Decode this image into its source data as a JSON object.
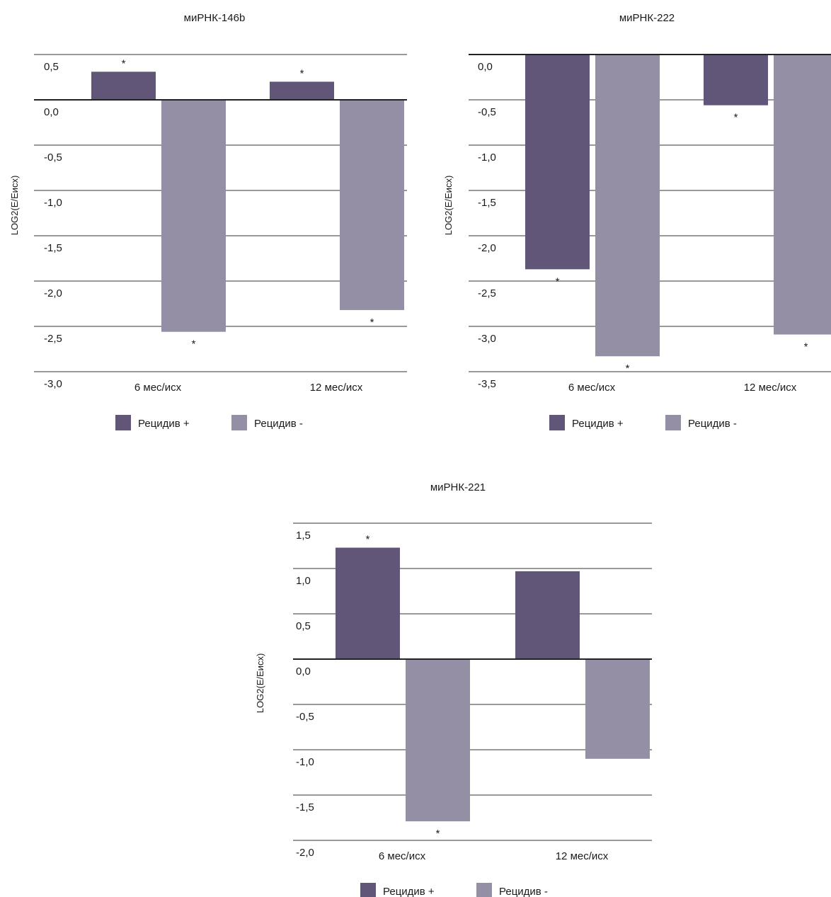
{
  "colors": {
    "relapse_plus": "#615677",
    "relapse_minus": "#958fa5",
    "grid": "#333333"
  },
  "chart_data": [
    {
      "type": "bar",
      "title": "миРНК-146b",
      "ylabel": "LOG2(E/Еисх)",
      "ylim": [
        -3.0,
        0.5
      ],
      "yticks": [
        "0,5",
        "0,0",
        "-0,5",
        "-1,0",
        "-1,5",
        "-2,0",
        "-2,5",
        "-3,0"
      ],
      "categories": [
        "6 мес/исх",
        "12 мес/исх"
      ],
      "series": [
        {
          "name": "Рецидив +",
          "values": [
            0.31,
            0.2
          ],
          "marks": [
            "*",
            "*"
          ]
        },
        {
          "name": "Рецидив -",
          "values": [
            -2.56,
            -2.32
          ],
          "marks": [
            "*",
            "*"
          ]
        }
      ],
      "legend": [
        "Рецидив +",
        "Рецидив -"
      ],
      "legend_position": "bottom",
      "grid": true
    },
    {
      "type": "bar",
      "title": "миРНК-222",
      "ylabel": "LOG2(E/Еисх)",
      "ylim": [
        -3.5,
        0.0
      ],
      "yticks": [
        "0,0",
        "-0,5",
        "-1,0",
        "-1,5",
        "-2,0",
        "-2,5",
        "-3,0",
        "-3,5"
      ],
      "categories": [
        "6 мес/исх",
        "12 мес/исх"
      ],
      "series": [
        {
          "name": "Рецидив +",
          "values": [
            -2.37,
            -0.56
          ],
          "marks": [
            "*",
            "*"
          ]
        },
        {
          "name": "Рецидив -",
          "values": [
            -3.33,
            -3.09
          ],
          "marks": [
            "*",
            "*"
          ]
        }
      ],
      "legend": [
        "Рецидив +",
        "Рецидив -"
      ],
      "legend_position": "bottom",
      "grid": true
    },
    {
      "type": "bar",
      "title": "миРНК-221",
      "ylabel": "LOG2(E/Еисх)",
      "ylim": [
        -2.0,
        1.5
      ],
      "yticks": [
        "1,5",
        "1,0",
        "0,5",
        "0,0",
        "-0,5",
        "-1,0",
        "-1,5",
        "-2,0"
      ],
      "categories": [
        "6 мес/исх",
        "12 мес/исх"
      ],
      "series": [
        {
          "name": "Рецидив +",
          "values": [
            1.23,
            0.97
          ],
          "marks": [
            "*",
            ""
          ]
        },
        {
          "name": "Рецидив -",
          "values": [
            -1.79,
            -1.1
          ],
          "marks": [
            "*",
            ""
          ]
        }
      ],
      "legend": [
        "Рецидив +",
        "Рецидив -"
      ],
      "legend_position": "bottom",
      "grid": true
    }
  ]
}
